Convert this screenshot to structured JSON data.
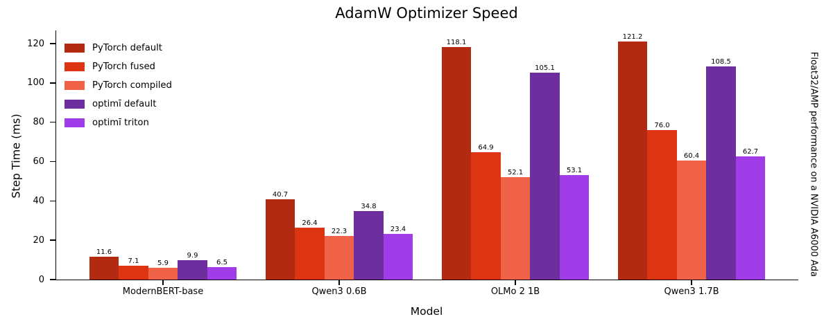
{
  "chart_data": {
    "type": "bar",
    "title": "AdamW Optimizer Speed",
    "xlabel": "Model",
    "ylabel": "Step Time (ms)",
    "right_label": "Float32/AMP performance on a NVIDIA A6000 Ada",
    "categories": [
      "ModernBERT-base",
      "Qwen3 0.6B",
      "OLMo 2 1B",
      "Qwen3 1.7B"
    ],
    "series": [
      {
        "name": "PyTorch default",
        "color": "#b22a10",
        "values": [
          11.6,
          40.7,
          118.1,
          121.2
        ]
      },
      {
        "name": "PyTorch fused",
        "color": "#dd3413",
        "values": [
          7.1,
          26.4,
          64.9,
          76.0
        ]
      },
      {
        "name": "PyTorch compiled",
        "color": "#f06248",
        "values": [
          5.9,
          22.3,
          52.1,
          60.4
        ]
      },
      {
        "name": "optimī default",
        "color": "#6e2f9e",
        "values": [
          9.9,
          34.8,
          105.1,
          108.5
        ]
      },
      {
        "name": "optimī triton",
        "color": "#a03de8",
        "values": [
          6.5,
          23.4,
          53.1,
          62.7
        ]
      }
    ],
    "yticks": [
      0,
      20,
      40,
      60,
      80,
      100,
      120
    ],
    "ylim": [
      0,
      126.7
    ],
    "value_label_decimals": 1,
    "legend_position": "upper left",
    "grid": false,
    "axis_color": "#000000"
  }
}
